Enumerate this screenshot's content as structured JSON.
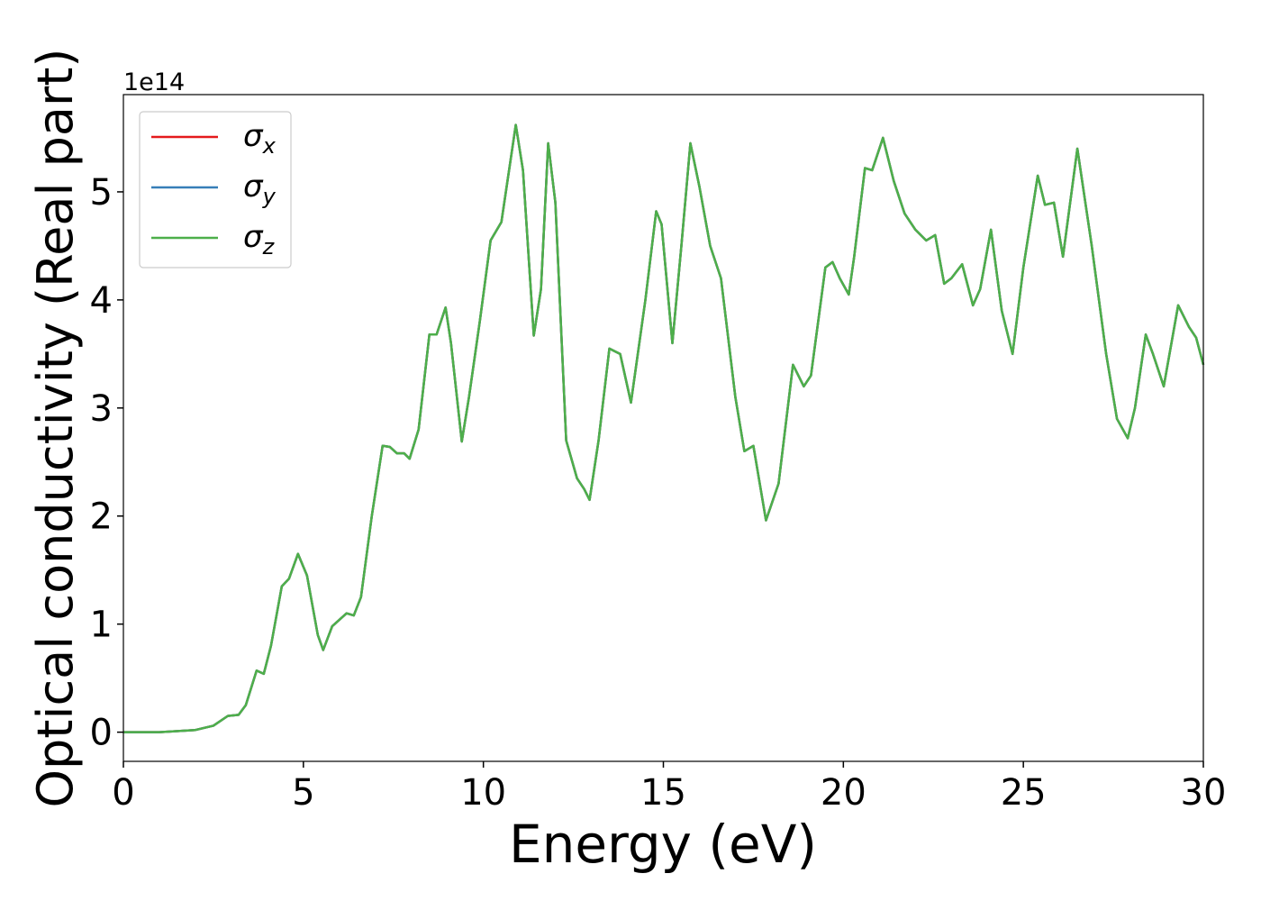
{
  "chart_data": {
    "type": "line",
    "xlabel": "Energy (eV)",
    "ylabel": "Optical conductivity (Real part)",
    "y_offset_label": "1e14",
    "x": [
      0,
      1,
      2,
      2.5,
      2.9,
      3.2,
      3.4,
      3.7,
      3.9,
      4.1,
      4.4,
      4.6,
      4.85,
      5.1,
      5.4,
      5.55,
      5.8,
      6.2,
      6.4,
      6.6,
      6.9,
      7.2,
      7.4,
      7.6,
      7.8,
      7.95,
      8.2,
      8.5,
      8.7,
      8.95,
      9.1,
      9.4,
      9.6,
      9.9,
      10.2,
      10.5,
      10.9,
      11.1,
      11.4,
      11.6,
      11.8,
      12.0,
      12.3,
      12.6,
      12.8,
      12.95,
      13.2,
      13.5,
      13.8,
      14.1,
      14.5,
      14.8,
      14.95,
      15.25,
      15.5,
      15.75,
      16.0,
      16.3,
      16.6,
      17.0,
      17.25,
      17.5,
      17.85,
      18.2,
      18.6,
      18.9,
      19.1,
      19.5,
      19.7,
      19.9,
      20.15,
      20.3,
      20.6,
      20.8,
      21.1,
      21.4,
      21.7,
      22.0,
      22.3,
      22.55,
      22.8,
      23.0,
      23.3,
      23.6,
      23.8,
      24.1,
      24.4,
      24.7,
      25.0,
      25.4,
      25.6,
      25.85,
      26.1,
      26.3,
      26.5,
      26.9,
      27.3,
      27.6,
      27.9,
      28.1,
      28.4,
      28.6,
      28.9,
      29.3,
      29.6,
      29.8,
      30.0
    ],
    "series": [
      {
        "name": "σx",
        "color": "#e41a1c",
        "values": [
          0,
          0,
          0.02,
          0.06,
          0.15,
          0.16,
          0.25,
          0.57,
          0.54,
          0.8,
          1.35,
          1.42,
          1.65,
          1.45,
          0.9,
          0.76,
          0.98,
          1.1,
          1.08,
          1.25,
          2.0,
          2.65,
          2.64,
          2.58,
          2.58,
          2.53,
          2.8,
          3.68,
          3.68,
          3.93,
          3.6,
          2.69,
          3.1,
          3.8,
          4.55,
          4.72,
          5.62,
          5.2,
          3.67,
          4.1,
          5.45,
          4.9,
          2.7,
          2.35,
          2.25,
          2.15,
          2.7,
          3.55,
          3.5,
          3.05,
          4.0,
          4.82,
          4.7,
          3.6,
          4.5,
          5.45,
          5.05,
          4.5,
          4.2,
          3.1,
          2.6,
          2.65,
          1.96,
          2.3,
          3.4,
          3.2,
          3.3,
          4.3,
          4.35,
          4.2,
          4.05,
          4.4,
          5.22,
          5.2,
          5.5,
          5.1,
          4.8,
          4.65,
          4.55,
          4.6,
          4.15,
          4.2,
          4.33,
          3.95,
          4.1,
          4.65,
          3.9,
          3.5,
          4.3,
          5.15,
          4.88,
          4.9,
          4.4,
          4.9,
          5.4,
          4.5,
          3.5,
          2.9,
          2.72,
          3.0,
          3.68,
          3.5,
          3.2,
          3.95,
          3.75,
          3.65,
          3.4
        ]
      },
      {
        "name": "σy",
        "color": "#377eb8",
        "values": [
          0,
          0,
          0.02,
          0.06,
          0.15,
          0.16,
          0.25,
          0.57,
          0.54,
          0.8,
          1.35,
          1.42,
          1.65,
          1.45,
          0.9,
          0.76,
          0.98,
          1.1,
          1.08,
          1.25,
          2.0,
          2.65,
          2.64,
          2.58,
          2.58,
          2.53,
          2.8,
          3.68,
          3.68,
          3.93,
          3.6,
          2.69,
          3.1,
          3.8,
          4.55,
          4.72,
          5.62,
          5.2,
          3.67,
          4.1,
          5.45,
          4.9,
          2.7,
          2.35,
          2.25,
          2.15,
          2.7,
          3.55,
          3.5,
          3.05,
          4.0,
          4.82,
          4.7,
          3.6,
          4.5,
          5.45,
          5.05,
          4.5,
          4.2,
          3.1,
          2.6,
          2.65,
          1.96,
          2.3,
          3.4,
          3.2,
          3.3,
          4.3,
          4.35,
          4.2,
          4.05,
          4.4,
          5.22,
          5.2,
          5.5,
          5.1,
          4.8,
          4.65,
          4.55,
          4.6,
          4.15,
          4.2,
          4.33,
          3.95,
          4.1,
          4.65,
          3.9,
          3.5,
          4.3,
          5.15,
          4.88,
          4.9,
          4.4,
          4.9,
          5.4,
          4.5,
          3.5,
          2.9,
          2.72,
          3.0,
          3.68,
          3.5,
          3.2,
          3.95,
          3.75,
          3.65,
          3.4
        ]
      },
      {
        "name": "σz",
        "color": "#4daf4a",
        "values": [
          0,
          0,
          0.02,
          0.06,
          0.15,
          0.16,
          0.25,
          0.57,
          0.54,
          0.8,
          1.35,
          1.42,
          1.65,
          1.45,
          0.9,
          0.76,
          0.98,
          1.1,
          1.08,
          1.25,
          2.0,
          2.65,
          2.64,
          2.58,
          2.58,
          2.53,
          2.8,
          3.68,
          3.68,
          3.93,
          3.6,
          2.69,
          3.1,
          3.8,
          4.55,
          4.72,
          5.62,
          5.2,
          3.67,
          4.1,
          5.45,
          4.9,
          2.7,
          2.35,
          2.25,
          2.15,
          2.7,
          3.55,
          3.5,
          3.05,
          4.0,
          4.82,
          4.7,
          3.6,
          4.5,
          5.45,
          5.05,
          4.5,
          4.2,
          3.1,
          2.6,
          2.65,
          1.96,
          2.3,
          3.4,
          3.2,
          3.3,
          4.3,
          4.35,
          4.2,
          4.05,
          4.4,
          5.22,
          5.2,
          5.5,
          5.1,
          4.8,
          4.65,
          4.55,
          4.6,
          4.15,
          4.2,
          4.33,
          3.95,
          4.1,
          4.65,
          3.9,
          3.5,
          4.3,
          5.15,
          4.88,
          4.9,
          4.4,
          4.9,
          5.4,
          4.5,
          3.5,
          2.9,
          2.72,
          3.0,
          3.68,
          3.5,
          3.2,
          3.95,
          3.75,
          3.65,
          3.4
        ]
      }
    ],
    "xlim": [
      0,
      30
    ],
    "xticks": [
      0,
      5,
      10,
      15,
      20,
      25,
      30
    ],
    "ylim": [
      -0.27,
      5.9
    ],
    "yticks": [
      0,
      1,
      2,
      3,
      4,
      5
    ],
    "grid": false,
    "legend": "upper left"
  }
}
